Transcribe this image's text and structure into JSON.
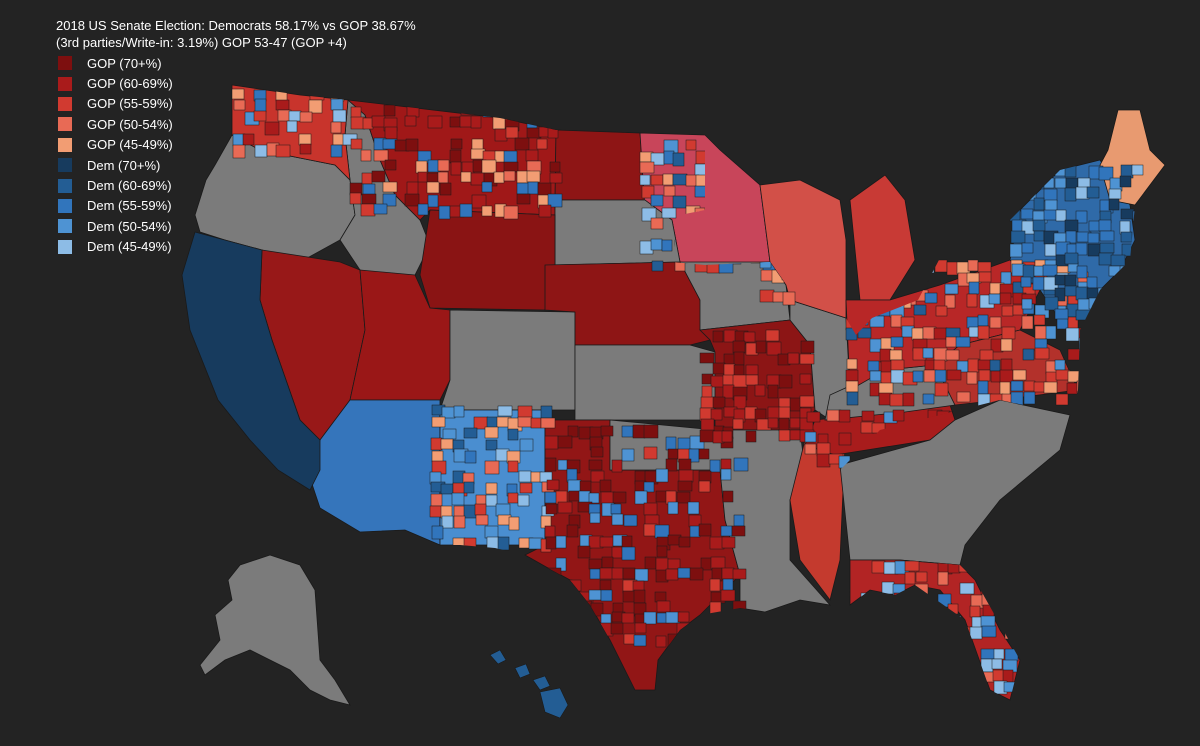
{
  "title": {
    "line1": "2018 US Senate Election: Democrats 58.17% vs GOP 38.67%",
    "line2": "(3rd parties/Write-in: 3.19%) GOP 53-47 (GOP +4)"
  },
  "legend": [
    {
      "label": "GOP (70+%)",
      "color": "#7d0f0f"
    },
    {
      "label": "GOP (60-69%)",
      "color": "#a91b1b"
    },
    {
      "label": "GOP (55-59%)",
      "color": "#d13a30"
    },
    {
      "label": "GOP (50-54%)",
      "color": "#e86a55"
    },
    {
      "label": "GOP (45-49%)",
      "color": "#f29d73"
    },
    {
      "label": "Dem (70+%)",
      "color": "#173b5e"
    },
    {
      "label": "Dem (60-69%)",
      "color": "#235d94"
    },
    {
      "label": "Dem (55-59%)",
      "color": "#3175bc"
    },
    {
      "label": "Dem (50-54%)",
      "color": "#4e93d3"
    },
    {
      "label": "Dem (45-49%)",
      "color": "#8dbce6"
    }
  ],
  "colors": {
    "background": "#232323",
    "no_election": "#7b7b7b",
    "border": "#1a1a1a"
  }
}
